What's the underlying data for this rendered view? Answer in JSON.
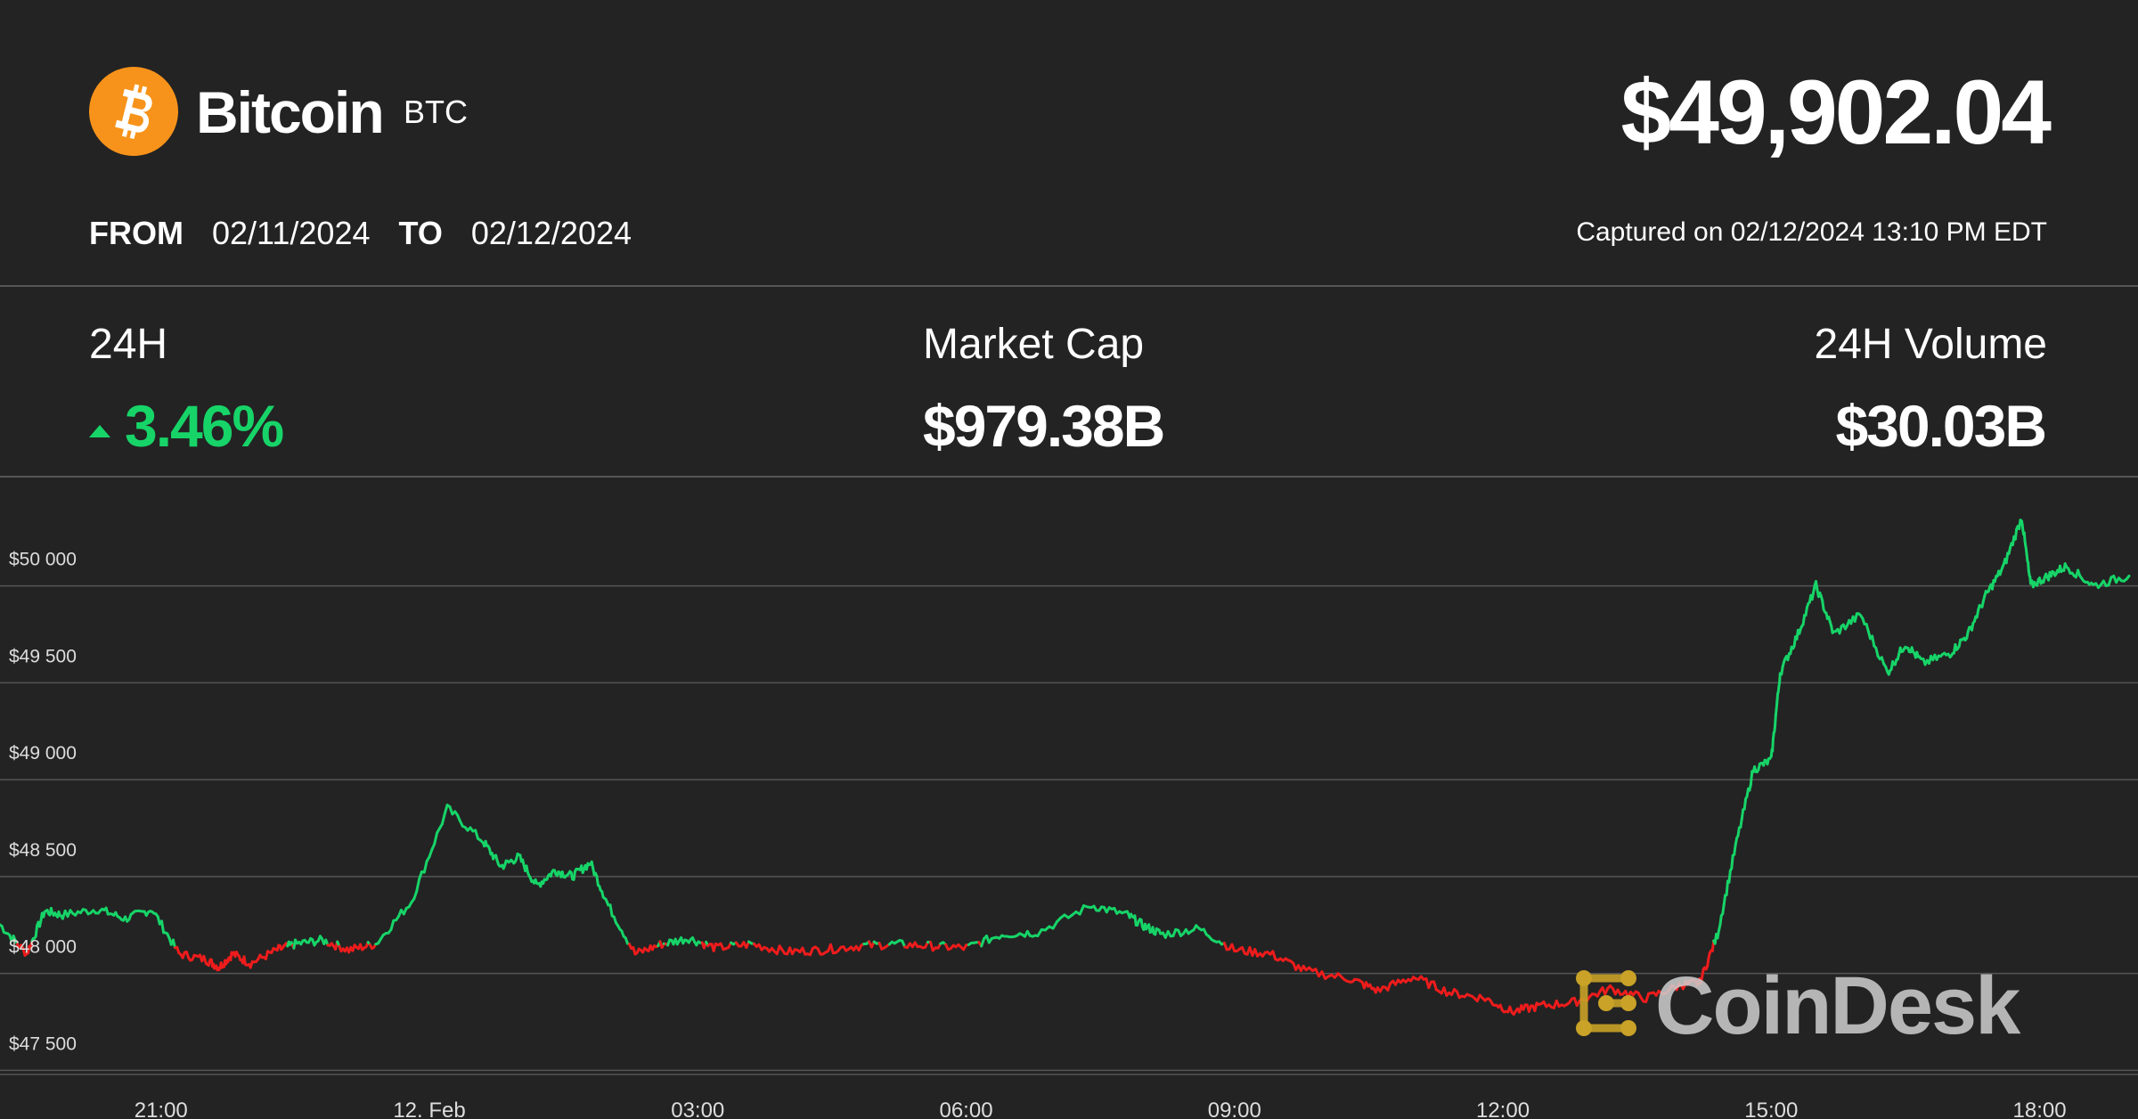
{
  "header": {
    "coin_name": "Bitcoin",
    "coin_symbol": "BTC",
    "logo_icon": "bitcoin-icon",
    "price": "$49,902.04",
    "from_label": "FROM",
    "from_date": "02/11/2024",
    "to_label": "TO",
    "to_date": "02/12/2024",
    "captured": "Captured on 02/12/2024 13:10 PM EDT"
  },
  "stats": {
    "change_label": "24H",
    "change_value": "3.46%",
    "change_direction": "up",
    "market_cap_label": "Market Cap",
    "market_cap_value": "$979.38B",
    "volume_label": "24H Volume",
    "volume_value": "$30.03B"
  },
  "watermark": {
    "text": "CoinDesk",
    "icon": "coindesk-logo-icon"
  },
  "colors": {
    "background": "#232323",
    "up": "#17d468",
    "down": "#ee1c1c",
    "brand_orange": "#f7931a",
    "watermark_gold": "#c9a227"
  },
  "chart_data": {
    "type": "line",
    "title": "",
    "xlabel": "",
    "ylabel": "",
    "y_ticks": [
      47500,
      48000,
      48500,
      49000,
      49500,
      50000
    ],
    "y_tick_labels": [
      "$47 500",
      "$48 000",
      "$48 500",
      "$49 000",
      "$49 500",
      "$50 000"
    ],
    "ylim": [
      47350,
      50380
    ],
    "xlim": [
      19.2,
      43.1
    ],
    "x_ticks": [
      21,
      24,
      27,
      30,
      33,
      36,
      39,
      42
    ],
    "x_tick_labels": [
      "21:00",
      "12. Feb",
      "03:00",
      "06:00",
      "09:00",
      "12:00",
      "15:00",
      "18:00"
    ],
    "grid": true,
    "coloring": "green above opening price, red below",
    "reference_price": 48000,
    "series": [
      {
        "x": [
          19.2,
          19.5,
          19.7,
          19.9,
          20.3,
          20.6,
          20.9,
          21.2,
          21.5,
          21.65,
          21.8,
          22.0,
          22.3,
          22.5,
          22.8,
          23.1,
          23.4,
          23.8,
          24.2,
          24.6,
          24.8,
          25.0,
          25.2,
          25.4,
          25.6,
          25.8,
          26.0,
          26.3,
          26.6,
          26.9,
          27.2,
          27.6,
          28.0,
          28.4,
          28.8,
          29.2,
          29.6,
          30.0,
          30.4,
          30.8,
          31.4,
          31.8,
          32.0,
          32.2,
          32.6,
          33.0,
          33.4,
          33.8,
          34.3,
          34.6,
          35.0,
          35.4,
          35.8,
          36.1,
          36.4,
          36.8,
          37.2,
          37.6,
          38.0,
          38.2,
          38.4,
          38.6,
          38.8,
          39.0,
          39.1,
          39.3,
          39.5,
          39.7,
          40.0,
          40.3,
          40.5,
          40.7,
          41.0,
          41.2,
          41.4,
          41.6,
          41.8,
          41.9,
          42.1,
          42.3,
          42.6,
          43.0
        ],
        "y": [
          48100,
          47950,
          48170,
          48150,
          48180,
          48130,
          48180,
          47950,
          47920,
          47880,
          47950,
          47900,
          47970,
          48000,
          48020,
          47970,
          48000,
          48220,
          48700,
          48530,
          48400,
          48450,
          48300,
          48380,
          48350,
          48420,
          48200,
          47950,
          48000,
          48030,
          47980,
          48000,
          47960,
          47970,
          47990,
          48000,
          47990,
          47980,
          48050,
          48060,
          48200,
          48150,
          48090,
          48050,
          48080,
          47970,
          47950,
          47860,
          47820,
          47760,
          47830,
          47750,
          47720,
          47650,
          47680,
          47700,
          47770,
          47720,
          47790,
          47800,
          48050,
          48500,
          48900,
          48950,
          49400,
          49600,
          49850,
          49600,
          49700,
          49400,
          49550,
          49450,
          49500,
          49600,
          49800,
          49950,
          50200,
          49850,
          49900,
          49950,
          49850,
          49900
        ]
      }
    ]
  }
}
